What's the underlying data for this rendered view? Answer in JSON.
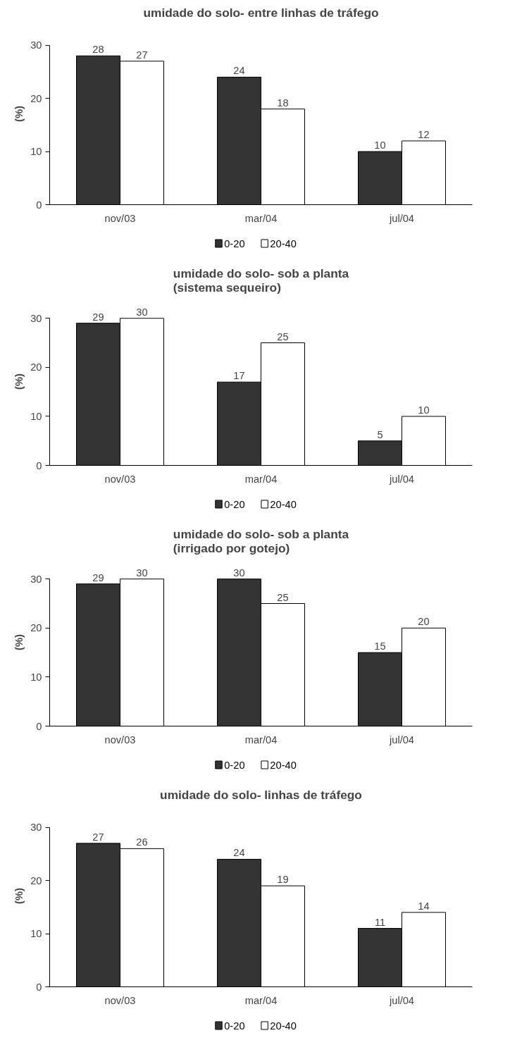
{
  "chart_data": [
    {
      "type": "bar",
      "title": "umidade do solo- entre linhas de tráfego",
      "ylabel": "(%)",
      "categories": [
        "nov/03",
        "mar/04",
        "jul/04"
      ],
      "series": [
        {
          "name": "0-20",
          "color": "#333333",
          "values": [
            28,
            24,
            10
          ]
        },
        {
          "name": "20-40",
          "color": "#ffffff",
          "values": [
            27,
            18,
            12
          ]
        }
      ],
      "ylim": [
        0,
        30
      ],
      "yticks": [
        0,
        10,
        20,
        30
      ],
      "data_labels": true,
      "legend": "bottom"
    },
    {
      "type": "bar",
      "title": "umidade do solo- sob a planta\n(sistema sequeiro)",
      "ylabel": "(%)",
      "categories": [
        "nov/03",
        "mar/04",
        "jul/04"
      ],
      "series": [
        {
          "name": "0-20",
          "color": "#333333",
          "values": [
            29,
            17,
            5
          ]
        },
        {
          "name": "20-40",
          "color": "#ffffff",
          "values": [
            30,
            25,
            10
          ]
        }
      ],
      "ylim": [
        0,
        30
      ],
      "yticks": [
        0,
        10,
        20,
        30
      ],
      "data_labels": true,
      "legend": "bottom"
    },
    {
      "type": "bar",
      "title": "umidade do solo- sob a planta\n(irrigado por gotejo)",
      "ylabel": "(%)",
      "categories": [
        "nov/03",
        "mar/04",
        "jul/04"
      ],
      "series": [
        {
          "name": "0-20",
          "color": "#333333",
          "values": [
            29,
            30,
            15
          ]
        },
        {
          "name": "20-40",
          "color": "#ffffff",
          "values": [
            30,
            25,
            20
          ]
        }
      ],
      "ylim": [
        0,
        30
      ],
      "yticks": [
        0,
        10,
        20,
        30
      ],
      "data_labels": true,
      "legend": "bottom"
    },
    {
      "type": "bar",
      "title": "umidade do solo- linhas de tráfego",
      "ylabel": "(%)",
      "categories": [
        "nov/03",
        "mar/04",
        "jul/04"
      ],
      "series": [
        {
          "name": "0-20",
          "color": "#333333",
          "values": [
            27,
            24,
            11
          ]
        },
        {
          "name": "20-40",
          "color": "#ffffff",
          "values": [
            26,
            19,
            14
          ]
        }
      ],
      "ylim": [
        0,
        30
      ],
      "yticks": [
        0,
        10,
        20,
        30
      ],
      "data_labels": true,
      "legend": "bottom"
    }
  ]
}
